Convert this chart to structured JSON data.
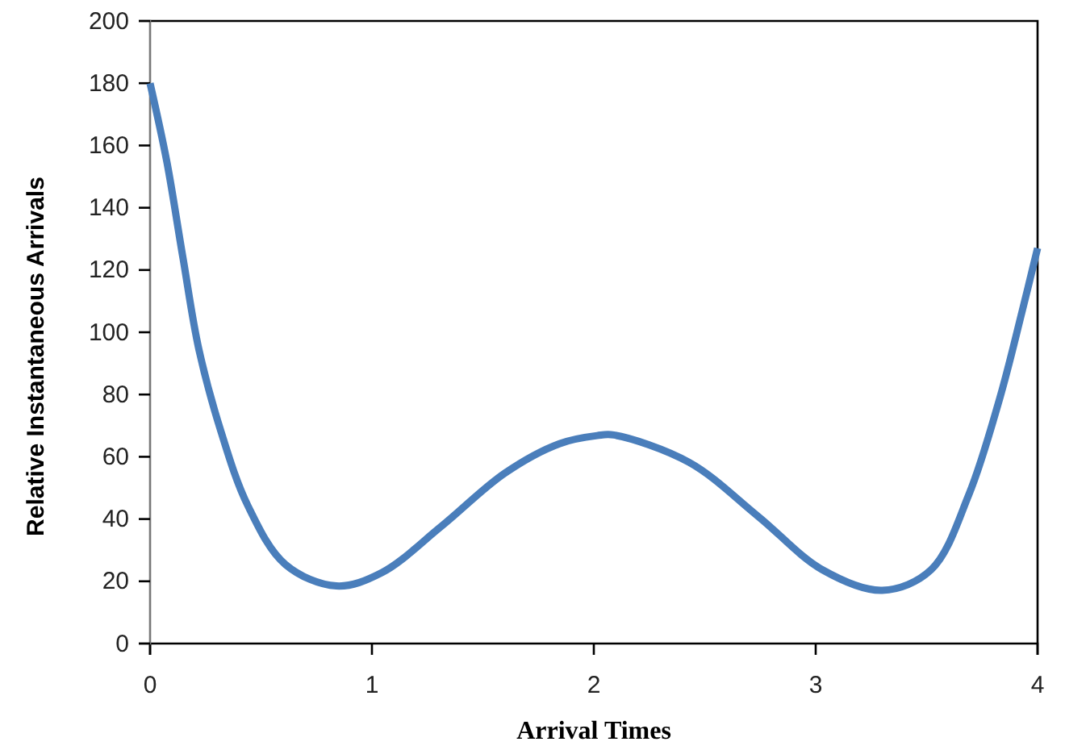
{
  "chart_data": {
    "type": "line",
    "xlabel": "Arrival Times",
    "ylabel": "Relative Instantaneous Arrivals",
    "x": [
      0,
      0.075,
      0.148,
      0.22,
      0.318,
      0.44,
      0.61,
      0.84,
      1.045,
      1.31,
      1.6,
      1.845,
      2.015,
      2.09,
      2.43,
      2.74,
      3.03,
      3.3,
      3.52,
      3.69,
      3.83,
      3.93,
      4.0
    ],
    "series": [
      {
        "color": "#4a7ebb",
        "values": [
          180,
          155,
          124,
          94.5,
          68.5,
          44.4,
          25.4,
          18.5,
          22.8,
          37.5,
          54.8,
          64.2,
          66.8,
          67,
          58.2,
          40.9,
          23.7,
          17.1,
          23.7,
          47.8,
          78.9,
          106.6,
          127
        ]
      }
    ],
    "xlim": [
      0,
      4
    ],
    "xticks": [
      0,
      1,
      2,
      3,
      4
    ],
    "ylim": [
      0,
      200
    ],
    "yticks": [
      0,
      20,
      40,
      60,
      80,
      100,
      120,
      140,
      160,
      180,
      200
    ],
    "grid": false,
    "marker": "none",
    "line_style": "solid"
  }
}
